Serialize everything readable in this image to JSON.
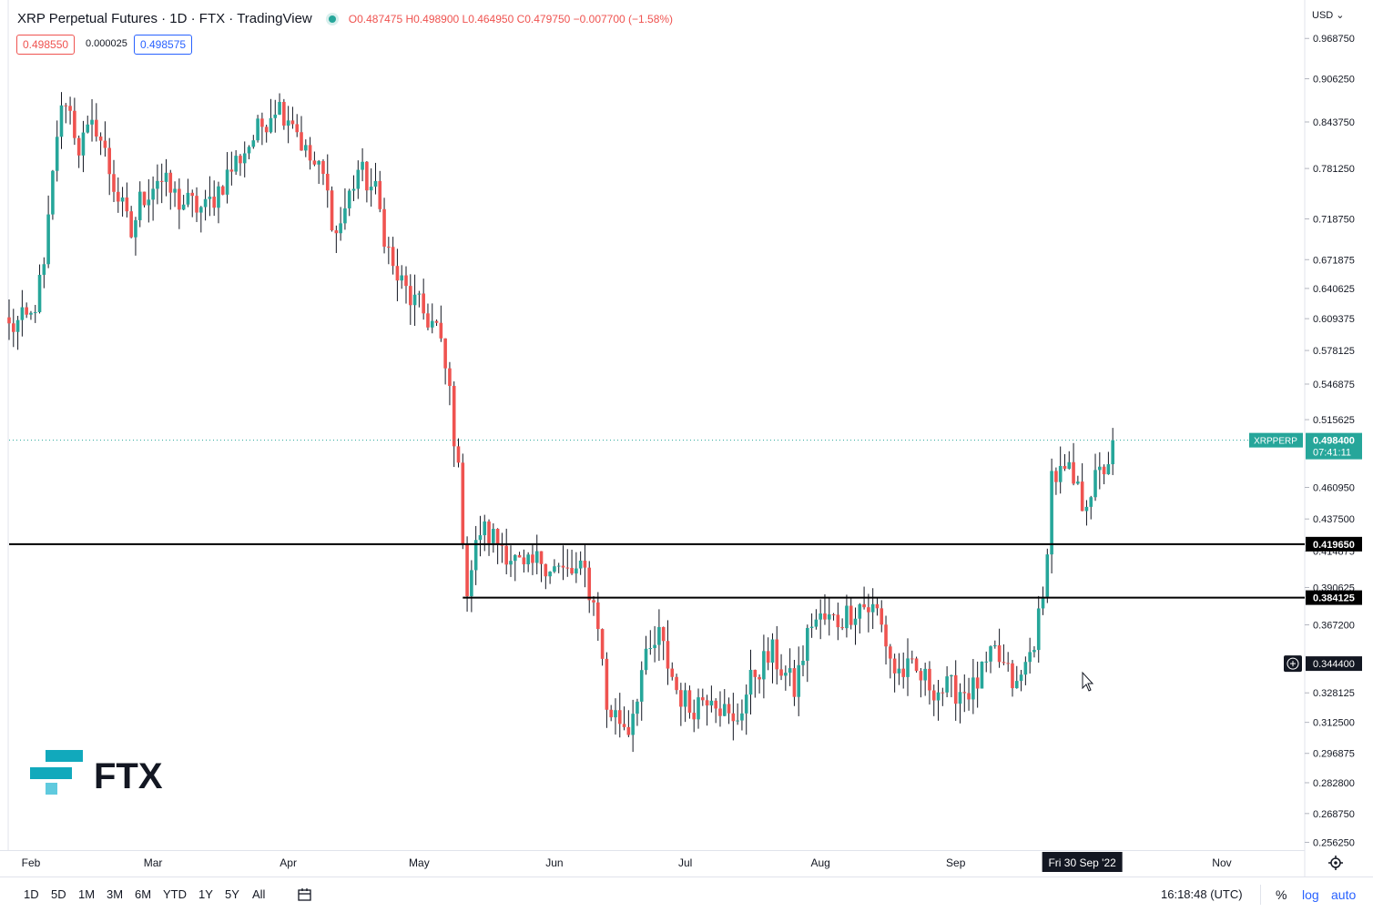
{
  "header": {
    "title": "XRP Perpetual Futures · 1D · FTX · TradingView",
    "ohlc": "O0.487475 H0.498900 L0.464950 C0.479750 −0.007700 (−1.58%)"
  },
  "quote": {
    "bid": "0.498550",
    "spread": "0.000025",
    "ask": "0.498575"
  },
  "currency": "USD",
  "timeframes": [
    "1D",
    "5D",
    "1M",
    "3M",
    "6M",
    "YTD",
    "1Y",
    "5Y",
    "All"
  ],
  "clock": "16:18:48 (UTC)",
  "scale_options": {
    "percent": "%",
    "log": "log",
    "auto": "auto"
  },
  "logo_text": "FTX",
  "colors": {
    "up": "#26a69a",
    "down": "#ef5350",
    "accent": "#2962ff",
    "logo_top": "#11a9bc",
    "logo_bottom": "#5fcade"
  },
  "chart_data": {
    "type": "candlestick",
    "symbol": "XRPPERP",
    "interval": "1D",
    "log_scale": true,
    "ylim": [
      0.2545,
      1.02
    ],
    "y_ticks": [
      "0.968750",
      "0.906250",
      "0.843750",
      "0.781250",
      "0.718750",
      "0.671875",
      "0.640625",
      "0.609375",
      "0.578125",
      "0.546875",
      "0.515625",
      "0.460950",
      "0.437500",
      "0.414875",
      "0.390625",
      "0.367200",
      "0.328125",
      "0.312500",
      "0.296875",
      "0.282800",
      "0.268750",
      "0.256250"
    ],
    "x_labels": [
      {
        "label": "Feb",
        "date": "2022-02-01"
      },
      {
        "label": "Mar",
        "date": "2022-03-01"
      },
      {
        "label": "Apr",
        "date": "2022-04-01"
      },
      {
        "label": "May",
        "date": "2022-05-01"
      },
      {
        "label": "Jun",
        "date": "2022-06-01"
      },
      {
        "label": "Jul",
        "date": "2022-07-01"
      },
      {
        "label": "Aug",
        "date": "2022-08-01"
      },
      {
        "label": "Sep",
        "date": "2022-09-01"
      },
      {
        "label": "Nov",
        "date": "2022-11-01"
      }
    ],
    "x_range": [
      "2022-01-27",
      "2022-11-20"
    ],
    "crosshair_date": {
      "date": "2022-09-30",
      "label": "Fri 30 Sep '22"
    },
    "last_price": {
      "value": 0.4984,
      "label": "XRPPERP",
      "value_label": "0.498400",
      "countdown": "07:41:11"
    },
    "horizontal_lines": [
      {
        "value": 0.41965,
        "label": "0.419650",
        "from": "2022-01-27"
      },
      {
        "value": 0.384125,
        "label": "0.384125",
        "from": "2022-05-11"
      }
    ],
    "crosshair_price": {
      "value": 0.3444,
      "label": "0.344400"
    },
    "anchors": [
      {
        "date": "2022-01-27",
        "value": 0.6
      },
      {
        "date": "2022-02-01",
        "value": 0.61
      },
      {
        "date": "2022-02-04",
        "value": 0.66
      },
      {
        "date": "2022-02-07",
        "value": 0.83
      },
      {
        "date": "2022-02-09",
        "value": 0.88
      },
      {
        "date": "2022-02-12",
        "value": 0.81
      },
      {
        "date": "2022-02-16",
        "value": 0.84
      },
      {
        "date": "2022-02-20",
        "value": 0.76
      },
      {
        "date": "2022-02-24",
        "value": 0.7
      },
      {
        "date": "2022-02-26",
        "value": 0.74
      },
      {
        "date": "2022-03-02",
        "value": 0.77
      },
      {
        "date": "2022-03-07",
        "value": 0.74
      },
      {
        "date": "2022-03-13",
        "value": 0.73
      },
      {
        "date": "2022-03-20",
        "value": 0.79
      },
      {
        "date": "2022-03-25",
        "value": 0.83
      },
      {
        "date": "2022-03-29",
        "value": 0.87
      },
      {
        "date": "2022-04-02",
        "value": 0.85
      },
      {
        "date": "2022-04-05",
        "value": 0.8
      },
      {
        "date": "2022-04-09",
        "value": 0.77
      },
      {
        "date": "2022-04-12",
        "value": 0.7
      },
      {
        "date": "2022-04-17",
        "value": 0.78
      },
      {
        "date": "2022-04-21",
        "value": 0.75
      },
      {
        "date": "2022-04-25",
        "value": 0.66
      },
      {
        "date": "2022-04-29",
        "value": 0.63
      },
      {
        "date": "2022-05-03",
        "value": 0.61
      },
      {
        "date": "2022-05-05",
        "value": 0.6
      },
      {
        "date": "2022-05-08",
        "value": 0.54
      },
      {
        "date": "2022-05-10",
        "value": 0.47
      },
      {
        "date": "2022-05-12",
        "value": 0.39
      },
      {
        "date": "2022-05-15",
        "value": 0.43
      },
      {
        "date": "2022-05-20",
        "value": 0.42
      },
      {
        "date": "2022-05-25",
        "value": 0.4
      },
      {
        "date": "2022-05-29",
        "value": 0.41
      },
      {
        "date": "2022-06-03",
        "value": 0.4
      },
      {
        "date": "2022-06-08",
        "value": 0.4
      },
      {
        "date": "2022-06-11",
        "value": 0.37
      },
      {
        "date": "2022-06-13",
        "value": 0.32
      },
      {
        "date": "2022-06-18",
        "value": 0.31
      },
      {
        "date": "2022-06-21",
        "value": 0.34
      },
      {
        "date": "2022-06-25",
        "value": 0.36
      },
      {
        "date": "2022-06-29",
        "value": 0.33
      },
      {
        "date": "2022-07-02",
        "value": 0.32
      },
      {
        "date": "2022-07-07",
        "value": 0.33
      },
      {
        "date": "2022-07-12",
        "value": 0.31
      },
      {
        "date": "2022-07-17",
        "value": 0.34
      },
      {
        "date": "2022-07-21",
        "value": 0.35
      },
      {
        "date": "2022-07-26",
        "value": 0.33
      },
      {
        "date": "2022-07-30",
        "value": 0.37
      },
      {
        "date": "2022-08-05",
        "value": 0.37
      },
      {
        "date": "2022-08-10",
        "value": 0.38
      },
      {
        "date": "2022-08-14",
        "value": 0.375
      },
      {
        "date": "2022-08-18",
        "value": 0.34
      },
      {
        "date": "2022-08-22",
        "value": 0.34
      },
      {
        "date": "2022-08-28",
        "value": 0.33
      },
      {
        "date": "2022-09-05",
        "value": 0.33
      },
      {
        "date": "2022-09-10",
        "value": 0.35
      },
      {
        "date": "2022-09-15",
        "value": 0.33
      },
      {
        "date": "2022-09-18",
        "value": 0.35
      },
      {
        "date": "2022-09-21",
        "value": 0.38
      },
      {
        "date": "2022-09-23",
        "value": 0.47
      },
      {
        "date": "2022-09-27",
        "value": 0.47
      },
      {
        "date": "2022-09-30",
        "value": 0.45
      },
      {
        "date": "2022-10-04",
        "value": 0.47
      },
      {
        "date": "2022-10-07",
        "value": 0.49
      }
    ]
  }
}
